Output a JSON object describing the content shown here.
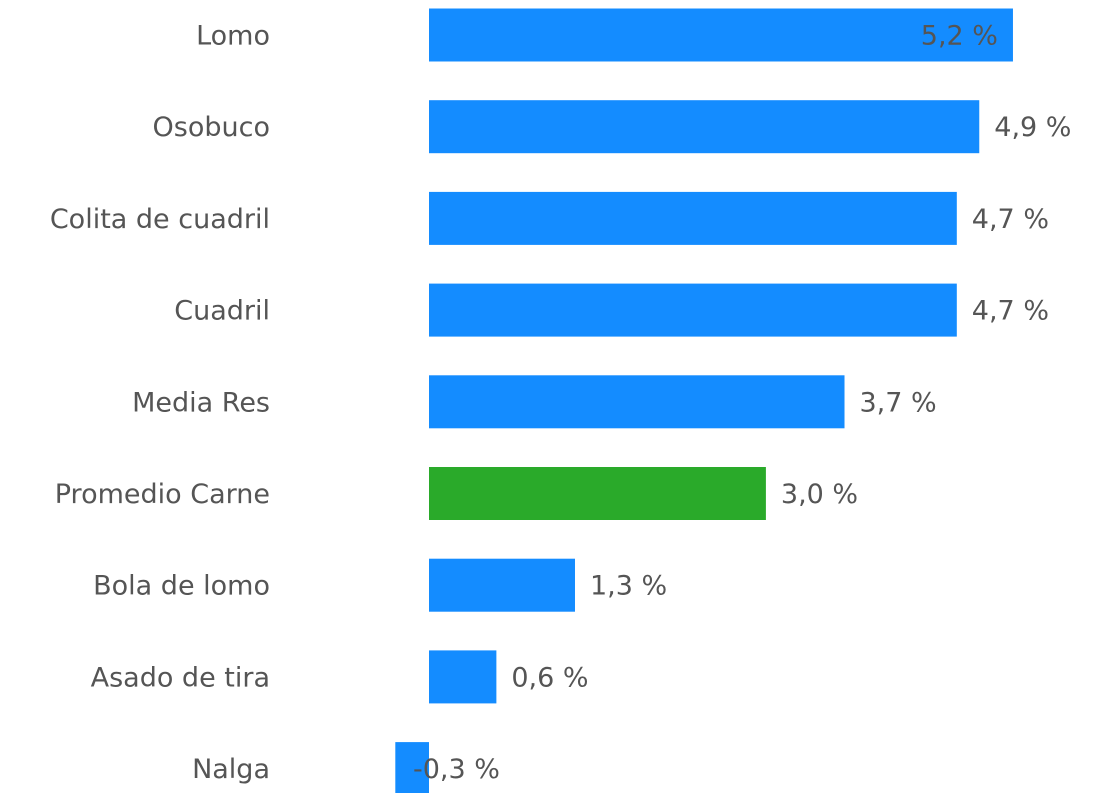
{
  "chart_data": {
    "type": "bar",
    "orientation": "horizontal",
    "categories": [
      "Lomo",
      "Osobuco",
      "Colita de cuadril",
      "Cuadril",
      "Media Res",
      "Promedio Carne",
      "Bola de lomo",
      "Asado de tira",
      "Nalga"
    ],
    "values": [
      5.2,
      4.9,
      4.7,
      4.7,
      3.7,
      3.0,
      1.3,
      0.6,
      -0.3
    ],
    "value_labels": [
      "5,2 %",
      "4,9 %",
      "4,7 %",
      "4,7 %",
      "3,7 %",
      "3,0 %",
      "1,3 %",
      "0,6 %",
      "-0,3 %"
    ],
    "colors": [
      "#148cff",
      "#148cff",
      "#148cff",
      "#148cff",
      "#148cff",
      "#2aaa2a",
      "#148cff",
      "#148cff",
      "#148cff"
    ]
  }
}
